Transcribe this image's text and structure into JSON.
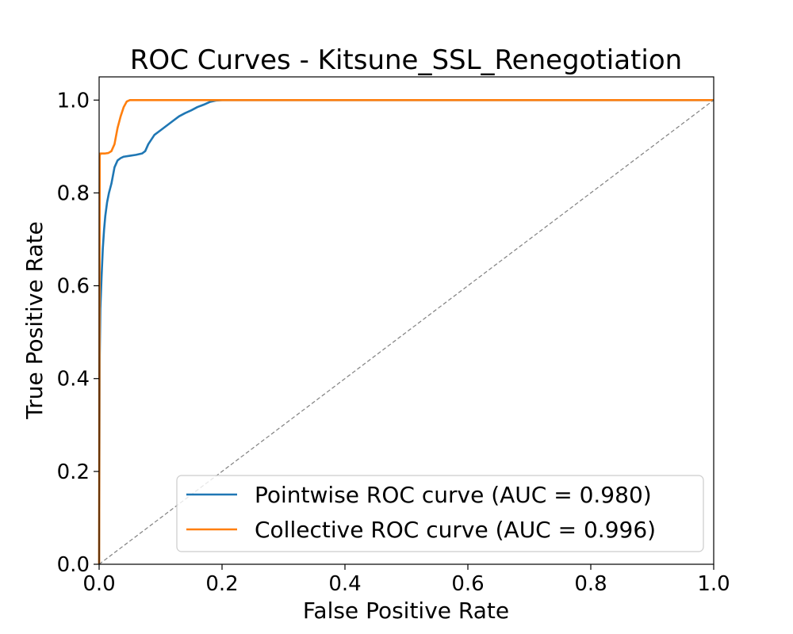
{
  "chart_data": {
    "type": "line",
    "title": "ROC Curves - Kitsune_SSL_Renegotiation",
    "xlabel": "False Positive Rate",
    "ylabel": "True Positive Rate",
    "xlim": [
      0.0,
      1.0
    ],
    "ylim": [
      0.0,
      1.05
    ],
    "xticks": [
      "0.0",
      "0.2",
      "0.4",
      "0.6",
      "0.8",
      "1.0"
    ],
    "yticks": [
      "0.0",
      "0.2",
      "0.4",
      "0.6",
      "0.8",
      "1.0"
    ],
    "grid": false,
    "legend_position": "lower-right",
    "series": [
      {
        "name": "Pointwise ROC curve (AUC = 0.980)",
        "color": "#1f77b4",
        "x": [
          0.0,
          0.001,
          0.002,
          0.004,
          0.006,
          0.008,
          0.01,
          0.013,
          0.016,
          0.02,
          0.025,
          0.03,
          0.035,
          0.04,
          0.05,
          0.06,
          0.07,
          0.075,
          0.08,
          0.085,
          0.09,
          0.1,
          0.11,
          0.12,
          0.13,
          0.14,
          0.15,
          0.16,
          0.17,
          0.18,
          0.19,
          0.2,
          0.3,
          0.4,
          0.5,
          0.6,
          0.7,
          0.8,
          0.9,
          1.0
        ],
        "y": [
          0.0,
          0.45,
          0.55,
          0.62,
          0.68,
          0.72,
          0.75,
          0.78,
          0.8,
          0.82,
          0.855,
          0.87,
          0.875,
          0.878,
          0.88,
          0.882,
          0.885,
          0.89,
          0.905,
          0.915,
          0.925,
          0.935,
          0.945,
          0.955,
          0.965,
          0.972,
          0.978,
          0.985,
          0.99,
          0.996,
          0.999,
          1.0,
          1.0,
          1.0,
          1.0,
          1.0,
          1.0,
          1.0,
          1.0,
          1.0
        ]
      },
      {
        "name": "Collective ROC curve (AUC = 0.996)",
        "color": "#ff7f0e",
        "x": [
          0.0,
          0.001,
          0.002,
          0.005,
          0.01,
          0.015,
          0.02,
          0.025,
          0.03,
          0.035,
          0.04,
          0.045,
          0.05,
          0.06,
          0.1,
          0.2,
          0.4,
          0.6,
          0.8,
          1.0
        ],
        "y": [
          0.0,
          0.88,
          0.885,
          0.885,
          0.885,
          0.886,
          0.89,
          0.905,
          0.94,
          0.965,
          0.985,
          0.997,
          1.0,
          1.0,
          1.0,
          1.0,
          1.0,
          1.0,
          1.0,
          1.0
        ]
      },
      {
        "name": "",
        "color": "#808080",
        "style": "dashed",
        "x": [
          0.0,
          1.0
        ],
        "y": [
          0.0,
          1.0
        ]
      }
    ]
  }
}
